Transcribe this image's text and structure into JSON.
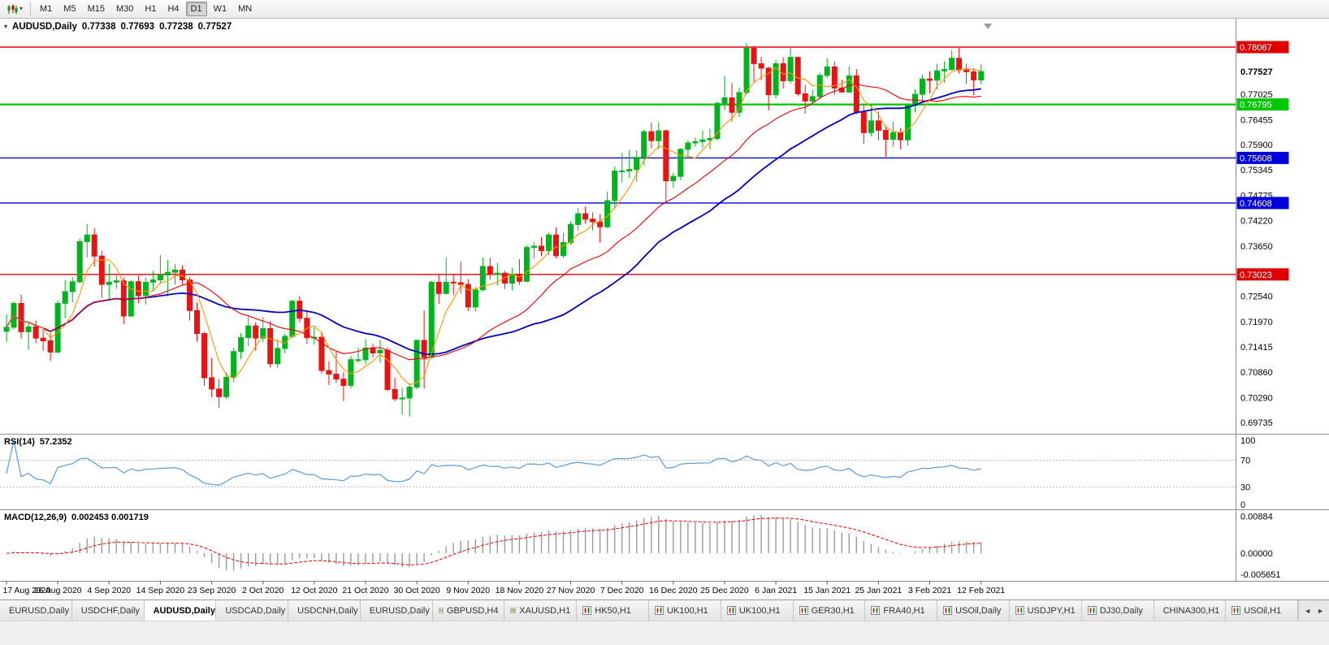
{
  "icons": {
    "chart_marker": "▾",
    "chart_dropdown_arrow": "▾",
    "tab_scroll_left": "◄",
    "tab_scroll_right": "►"
  },
  "toolbar": {
    "timeframes": [
      "M1",
      "M5",
      "M15",
      "M30",
      "H1",
      "H4",
      "D1",
      "W1",
      "MN"
    ],
    "active": "D1"
  },
  "chart_header": {
    "symbol": "AUDUSD,Daily",
    "open": "0.77338",
    "high": "0.77693",
    "low": "0.77238",
    "close": "0.77527"
  },
  "indicators": {
    "rsi": {
      "label": "RSI(14)",
      "value": "57.2352",
      "scale": [
        "100",
        "70",
        "30",
        "0"
      ]
    },
    "macd": {
      "label": "MACD(12,26,9)",
      "value": "0.002453 0.001719",
      "scale_top": "0.00884",
      "scale_zero": "0.00000",
      "scale_bottom": "-0.005651"
    }
  },
  "price_scale": {
    "ticks": [
      "0.77025",
      "0.76455",
      "0.75900",
      "0.75345",
      "0.74775",
      "0.74220",
      "0.73650",
      "0.72540",
      "0.71970",
      "0.71415",
      "0.70860",
      "0.70290",
      "0.69735"
    ],
    "current": "0.77527",
    "badges": [
      {
        "text": "0.78067",
        "color": "#e00000"
      },
      {
        "text": "0.76795",
        "color": "#00c800"
      },
      {
        "text": "0.75608",
        "color": "#0000dc"
      },
      {
        "text": "0.74608",
        "color": "#0000dc"
      },
      {
        "text": "0.73023",
        "color": "#e00000"
      }
    ]
  },
  "date_axis": [
    "17 Aug 2020",
    "26 Aug 2020",
    "4 Sep 2020",
    "14 Sep 2020",
    "23 Sep 2020",
    "2 Oct 2020",
    "12 Oct 2020",
    "21 Oct 2020",
    "30 Oct 2020",
    "9 Nov 2020",
    "18 Nov 2020",
    "27 Nov 2020",
    "7 Dec 2020",
    "16 Dec 2020",
    "25 Dec 2020",
    "6 Jan 2021",
    "15 Jan 2021",
    "25 Jan 2021",
    "3 Feb 2021",
    "12 Feb 2021"
  ],
  "tabs": {
    "items": [
      "EURUSD,Daily",
      "USDCHF,Daily",
      "AUDUSD,Daily",
      "USDCAD,Daily",
      "USDCNH,Daily",
      "EURUSD,Daily",
      "GBPUSD,H4",
      "XAUUSD,H1",
      "HK50,H1",
      "UK100,H1",
      "UK100,H1",
      "GER30,H1",
      "FRA40,H1",
      "USOil,Daily",
      "USDJPY,H1",
      "DJ30,Daily",
      "CHINA300,H1",
      "USOil,H1"
    ],
    "active_index": 2
  },
  "chart_data": {
    "type": "candlestick",
    "symbol": "AUDUSD",
    "timeframe": "Daily",
    "ohlc_current": {
      "open": 0.77338,
      "high": 0.77693,
      "low": 0.77238,
      "close": 0.77527
    },
    "price_axis_range": [
      0.6954,
      0.7859
    ],
    "up_color": "#00b41e",
    "down_color": "#e81414",
    "candles": [
      [
        0.7176,
        0.7214,
        0.7152,
        0.7185
      ],
      [
        0.7185,
        0.7243,
        0.718,
        0.7238
      ],
      [
        0.7238,
        0.7257,
        0.716,
        0.7175
      ],
      [
        0.7175,
        0.7197,
        0.7135,
        0.7186
      ],
      [
        0.7186,
        0.72,
        0.715,
        0.7161
      ],
      [
        0.7161,
        0.718,
        0.7133,
        0.7155
      ],
      [
        0.7155,
        0.7172,
        0.711,
        0.713
      ],
      [
        0.713,
        0.7245,
        0.7127,
        0.7238
      ],
      [
        0.7238,
        0.729,
        0.7205,
        0.7264
      ],
      [
        0.7264,
        0.7296,
        0.724,
        0.7286
      ],
      [
        0.7286,
        0.7382,
        0.7283,
        0.7375
      ],
      [
        0.7375,
        0.7414,
        0.734,
        0.739
      ],
      [
        0.739,
        0.7405,
        0.732,
        0.7343
      ],
      [
        0.7343,
        0.7355,
        0.725,
        0.728
      ],
      [
        0.728,
        0.7326,
        0.7247,
        0.7285
      ],
      [
        0.7285,
        0.73,
        0.727,
        0.7288
      ],
      [
        0.7288,
        0.7295,
        0.7192,
        0.721
      ],
      [
        0.721,
        0.729,
        0.7208,
        0.7286
      ],
      [
        0.7286,
        0.73,
        0.7238,
        0.7255
      ],
      [
        0.7255,
        0.7295,
        0.7235,
        0.7285
      ],
      [
        0.7285,
        0.731,
        0.7265,
        0.729
      ],
      [
        0.729,
        0.7345,
        0.7284,
        0.7301
      ],
      [
        0.7301,
        0.7335,
        0.7253,
        0.7307
      ],
      [
        0.7307,
        0.7325,
        0.728,
        0.7312
      ],
      [
        0.7312,
        0.7322,
        0.7277,
        0.729
      ],
      [
        0.729,
        0.7296,
        0.72,
        0.7222
      ],
      [
        0.7222,
        0.724,
        0.7153,
        0.7171
      ],
      [
        0.7171,
        0.7175,
        0.7055,
        0.7073
      ],
      [
        0.7073,
        0.7117,
        0.703,
        0.7048
      ],
      [
        0.7048,
        0.707,
        0.7006,
        0.7031
      ],
      [
        0.7031,
        0.7085,
        0.7026,
        0.7074
      ],
      [
        0.7074,
        0.7139,
        0.7063,
        0.7131
      ],
      [
        0.7131,
        0.7172,
        0.7114,
        0.7162
      ],
      [
        0.7162,
        0.7209,
        0.7143,
        0.7188
      ],
      [
        0.7188,
        0.7196,
        0.7133,
        0.7161
      ],
      [
        0.7161,
        0.7208,
        0.7152,
        0.7182
      ],
      [
        0.7182,
        0.7199,
        0.7096,
        0.7104
      ],
      [
        0.7104,
        0.7158,
        0.7095,
        0.7138
      ],
      [
        0.7138,
        0.7171,
        0.7127,
        0.7165
      ],
      [
        0.7165,
        0.7245,
        0.716,
        0.7243
      ],
      [
        0.7243,
        0.7254,
        0.7196,
        0.7205
      ],
      [
        0.7205,
        0.7222,
        0.7148,
        0.7162
      ],
      [
        0.7162,
        0.7185,
        0.7146,
        0.7163
      ],
      [
        0.7163,
        0.7174,
        0.7082,
        0.7089
      ],
      [
        0.7089,
        0.711,
        0.7057,
        0.7081
      ],
      [
        0.7081,
        0.7131,
        0.7062,
        0.707
      ],
      [
        0.707,
        0.7086,
        0.7021,
        0.7056
      ],
      [
        0.7056,
        0.7121,
        0.7049,
        0.7113
      ],
      [
        0.7113,
        0.714,
        0.7106,
        0.7113
      ],
      [
        0.7113,
        0.7158,
        0.7103,
        0.7139
      ],
      [
        0.7139,
        0.7148,
        0.7118,
        0.7128
      ],
      [
        0.7128,
        0.7157,
        0.7107,
        0.7134
      ],
      [
        0.7134,
        0.714,
        0.7043,
        0.7047
      ],
      [
        0.7047,
        0.7073,
        0.7021,
        0.7026
      ],
      [
        0.7026,
        0.705,
        0.6991,
        0.7028
      ],
      [
        0.7028,
        0.7061,
        0.6987,
        0.7052
      ],
      [
        0.7052,
        0.7158,
        0.7048,
        0.7156
      ],
      [
        0.7156,
        0.7222,
        0.7049,
        0.7118
      ],
      [
        0.7118,
        0.7288,
        0.7115,
        0.7285
      ],
      [
        0.7285,
        0.7302,
        0.7237,
        0.726
      ],
      [
        0.726,
        0.734,
        0.7258,
        0.7285
      ],
      [
        0.7285,
        0.7302,
        0.7257,
        0.7284
      ],
      [
        0.7284,
        0.7331,
        0.726,
        0.728
      ],
      [
        0.728,
        0.7292,
        0.7221,
        0.723
      ],
      [
        0.723,
        0.7274,
        0.722,
        0.7268
      ],
      [
        0.7268,
        0.734,
        0.7265,
        0.732
      ],
      [
        0.732,
        0.7339,
        0.7291,
        0.7302
      ],
      [
        0.7302,
        0.7328,
        0.7277,
        0.7305
      ],
      [
        0.7305,
        0.731,
        0.727,
        0.7283
      ],
      [
        0.7283,
        0.7317,
        0.7267,
        0.7303
      ],
      [
        0.7303,
        0.7336,
        0.7279,
        0.7287
      ],
      [
        0.7287,
        0.7367,
        0.7285,
        0.7362
      ],
      [
        0.7362,
        0.7374,
        0.7337,
        0.7365
      ],
      [
        0.7365,
        0.7385,
        0.7343,
        0.7355
      ],
      [
        0.7355,
        0.7395,
        0.7345,
        0.739
      ],
      [
        0.739,
        0.7407,
        0.7338,
        0.7344
      ],
      [
        0.7344,
        0.7394,
        0.7339,
        0.7373
      ],
      [
        0.7373,
        0.742,
        0.7368,
        0.7413
      ],
      [
        0.7413,
        0.7449,
        0.74,
        0.7437
      ],
      [
        0.7437,
        0.7453,
        0.7415,
        0.7425
      ],
      [
        0.7425,
        0.744,
        0.74,
        0.7419
      ],
      [
        0.7419,
        0.7436,
        0.7373,
        0.7408
      ],
      [
        0.7408,
        0.7486,
        0.7405,
        0.7466
      ],
      [
        0.7466,
        0.7542,
        0.7448,
        0.7532
      ],
      [
        0.7532,
        0.7572,
        0.7506,
        0.7532
      ],
      [
        0.7532,
        0.7578,
        0.7516,
        0.7535
      ],
      [
        0.7535,
        0.7578,
        0.7508,
        0.7562
      ],
      [
        0.7562,
        0.7624,
        0.7544,
        0.7619
      ],
      [
        0.7619,
        0.7639,
        0.7582,
        0.7599
      ],
      [
        0.7599,
        0.764,
        0.758,
        0.7621
      ],
      [
        0.7621,
        0.7624,
        0.7462,
        0.751
      ],
      [
        0.751,
        0.7528,
        0.7495,
        0.752
      ],
      [
        0.752,
        0.7583,
        0.7511,
        0.758
      ],
      [
        0.758,
        0.76,
        0.756,
        0.7594
      ],
      [
        0.7594,
        0.7606,
        0.7585,
        0.7597
      ],
      [
        0.7597,
        0.7622,
        0.7583,
        0.7601
      ],
      [
        0.7601,
        0.7625,
        0.758,
        0.7604
      ],
      [
        0.7604,
        0.7686,
        0.7599,
        0.7682
      ],
      [
        0.7682,
        0.7743,
        0.7667,
        0.7694
      ],
      [
        0.7694,
        0.7727,
        0.7642,
        0.7662
      ],
      [
        0.7662,
        0.7717,
        0.7652,
        0.7706
      ],
      [
        0.7706,
        0.7816,
        0.77,
        0.7804
      ],
      [
        0.7804,
        0.781,
        0.7729,
        0.777
      ],
      [
        0.777,
        0.7785,
        0.7733,
        0.776
      ],
      [
        0.776,
        0.7763,
        0.7666,
        0.7701
      ],
      [
        0.7701,
        0.7779,
        0.7693,
        0.777
      ],
      [
        0.777,
        0.7784,
        0.7715,
        0.7732
      ],
      [
        0.7732,
        0.7805,
        0.7725,
        0.7784
      ],
      [
        0.7784,
        0.7786,
        0.7698,
        0.7703
      ],
      [
        0.7703,
        0.7723,
        0.7659,
        0.7687
      ],
      [
        0.7687,
        0.7712,
        0.7681,
        0.7697
      ],
      [
        0.7697,
        0.775,
        0.769,
        0.7744
      ],
      [
        0.7744,
        0.7782,
        0.7738,
        0.7763
      ],
      [
        0.7763,
        0.7775,
        0.7701,
        0.7716
      ],
      [
        0.7716,
        0.7734,
        0.7706,
        0.7707
      ],
      [
        0.7707,
        0.7764,
        0.7705,
        0.7743
      ],
      [
        0.7743,
        0.7758,
        0.7658,
        0.7662
      ],
      [
        0.7662,
        0.768,
        0.7592,
        0.7617
      ],
      [
        0.7617,
        0.768,
        0.7609,
        0.7643
      ],
      [
        0.7643,
        0.7664,
        0.76,
        0.7622
      ],
      [
        0.7622,
        0.7632,
        0.7563,
        0.7602
      ],
      [
        0.7602,
        0.7642,
        0.7585,
        0.7617
      ],
      [
        0.7617,
        0.7627,
        0.758,
        0.7601
      ],
      [
        0.7601,
        0.7682,
        0.7588,
        0.7677
      ],
      [
        0.7677,
        0.7713,
        0.7662,
        0.7702
      ],
      [
        0.7702,
        0.7746,
        0.7684,
        0.7736
      ],
      [
        0.7736,
        0.7753,
        0.7704,
        0.7733
      ],
      [
        0.7733,
        0.777,
        0.7713,
        0.7754
      ],
      [
        0.7754,
        0.7775,
        0.7728,
        0.7757
      ],
      [
        0.7757,
        0.78,
        0.7755,
        0.7782
      ],
      [
        0.7782,
        0.7805,
        0.7748,
        0.7756
      ],
      [
        0.7756,
        0.777,
        0.7725,
        0.7752
      ],
      [
        0.7752,
        0.776,
        0.77,
        0.7734
      ],
      [
        0.77338,
        0.77693,
        0.77238,
        0.77527
      ]
    ],
    "moving_averages": [
      {
        "type": "sma",
        "period": 34,
        "color": "#0000c0",
        "width": 1.8
      },
      {
        "type": "sma",
        "period": 20,
        "color": "#ee0000",
        "width": 1.1
      },
      {
        "type": "sma",
        "period": 5,
        "color": "#ff9800",
        "width": 1.1
      }
    ],
    "horizontal_levels": [
      {
        "price": 0.78067,
        "color": "#e00000",
        "width": 1.4
      },
      {
        "price": 0.76795,
        "color": "#00c800",
        "width": 2.2
      },
      {
        "price": 0.75608,
        "color": "#0000dc",
        "width": 1.4
      },
      {
        "price": 0.74608,
        "color": "#0000dc",
        "width": 1.4
      },
      {
        "price": 0.73023,
        "color": "#e00000",
        "width": 1.4
      }
    ],
    "rsi": {
      "period": 14,
      "current": 57.2352,
      "levels": [
        70,
        30
      ],
      "range": [
        0,
        100
      ],
      "color": "#5b9bd5"
    },
    "macd": {
      "fast": 12,
      "slow": 26,
      "signal": 9,
      "current": [
        0.002453,
        0.001719
      ],
      "axis_range": [
        -0.0062,
        0.0095
      ],
      "histogram_color": "#9a9a9a",
      "signal_color": "#ee0000"
    }
  }
}
